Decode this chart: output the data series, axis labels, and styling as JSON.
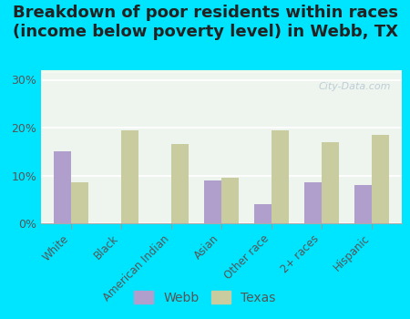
{
  "title": "Breakdown of poor residents within races\n(income below poverty level) in Webb, TX",
  "categories": [
    "White",
    "Black",
    "American Indian",
    "Asian",
    "Other race",
    "2+ races",
    "Hispanic"
  ],
  "webb_values": [
    15.0,
    0.0,
    0.0,
    9.0,
    4.0,
    8.5,
    8.0
  ],
  "texas_values": [
    8.5,
    19.5,
    16.5,
    9.5,
    19.5,
    17.0,
    18.5
  ],
  "webb_color": "#b09fcc",
  "texas_color": "#c8cc9f",
  "bg_top_color": "#e8f4e8",
  "bg_bottom_color": "#f5faf0",
  "outer_bg_color": "#00e5ff",
  "ylim": [
    0,
    32
  ],
  "yticks": [
    0,
    10,
    20,
    30
  ],
  "ytick_labels": [
    "0%",
    "10%",
    "20%",
    "30%"
  ],
  "watermark": "City-Data.com",
  "title_fontsize": 13,
  "legend_fontsize": 10
}
